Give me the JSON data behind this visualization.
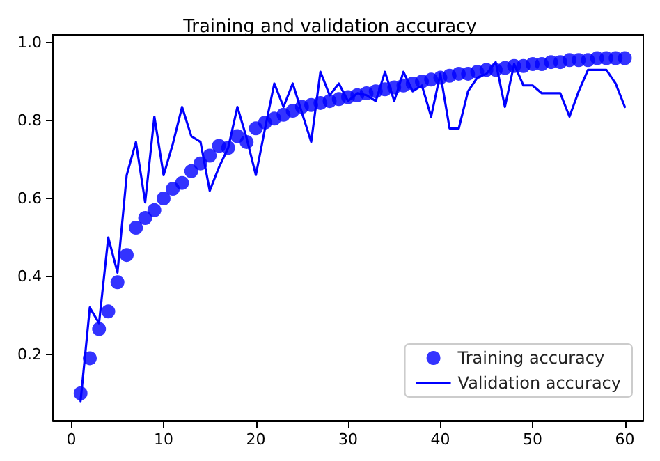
{
  "chart_data": {
    "type": "line",
    "title": "Training and validation accuracy",
    "x": [
      1,
      2,
      3,
      4,
      5,
      6,
      7,
      8,
      9,
      10,
      11,
      12,
      13,
      14,
      15,
      16,
      17,
      18,
      19,
      20,
      21,
      22,
      23,
      24,
      25,
      26,
      27,
      28,
      29,
      30,
      31,
      32,
      33,
      34,
      35,
      36,
      37,
      38,
      39,
      40,
      41,
      42,
      43,
      44,
      45,
      46,
      47,
      48,
      49,
      50,
      51,
      52,
      53,
      54,
      55,
      56,
      57,
      58,
      59,
      60
    ],
    "series": [
      {
        "name": "Training accuracy",
        "type": "scatter",
        "marker": "circle",
        "color": "#0000ff",
        "values": [
          0.1,
          0.19,
          0.265,
          0.31,
          0.385,
          0.455,
          0.525,
          0.55,
          0.57,
          0.6,
          0.625,
          0.64,
          0.67,
          0.69,
          0.71,
          0.735,
          0.73,
          0.76,
          0.745,
          0.78,
          0.795,
          0.805,
          0.815,
          0.825,
          0.835,
          0.84,
          0.845,
          0.85,
          0.855,
          0.86,
          0.865,
          0.87,
          0.875,
          0.88,
          0.885,
          0.89,
          0.895,
          0.9,
          0.905,
          0.91,
          0.915,
          0.92,
          0.92,
          0.925,
          0.93,
          0.93,
          0.935,
          0.94,
          0.94,
          0.945,
          0.945,
          0.95,
          0.95,
          0.955,
          0.955,
          0.955,
          0.96,
          0.96,
          0.96,
          0.96
        ]
      },
      {
        "name": "Validation accuracy",
        "marker": "none",
        "line_style": "solid",
        "color": "#0000ff",
        "values": [
          0.08,
          0.32,
          0.28,
          0.5,
          0.41,
          0.66,
          0.745,
          0.59,
          0.81,
          0.66,
          0.74,
          0.835,
          0.76,
          0.745,
          0.62,
          0.68,
          0.73,
          0.835,
          0.755,
          0.66,
          0.78,
          0.895,
          0.835,
          0.895,
          0.82,
          0.745,
          0.925,
          0.865,
          0.895,
          0.85,
          0.87,
          0.865,
          0.85,
          0.925,
          0.85,
          0.925,
          0.875,
          0.89,
          0.81,
          0.92,
          0.78,
          0.78,
          0.875,
          0.91,
          0.92,
          0.95,
          0.835,
          0.945,
          0.89,
          0.89,
          0.87,
          0.87,
          0.87,
          0.81,
          0.875,
          0.93,
          0.93,
          0.93,
          0.895,
          0.835
        ]
      }
    ],
    "xlim": [
      -2,
      62
    ],
    "xticks": [
      0,
      10,
      20,
      30,
      40,
      50,
      60
    ],
    "ylim": [
      0.03,
      1.02
    ],
    "yticks": [
      {
        "value": 0.2,
        "label": "0.2"
      },
      {
        "value": 0.4,
        "label": "0.4"
      },
      {
        "value": 0.6,
        "label": "0.6"
      },
      {
        "value": 0.8,
        "label": "0.8"
      },
      {
        "value": 1,
        "label": "1.0"
      }
    ],
    "grid": false,
    "legend": "bottom right"
  }
}
